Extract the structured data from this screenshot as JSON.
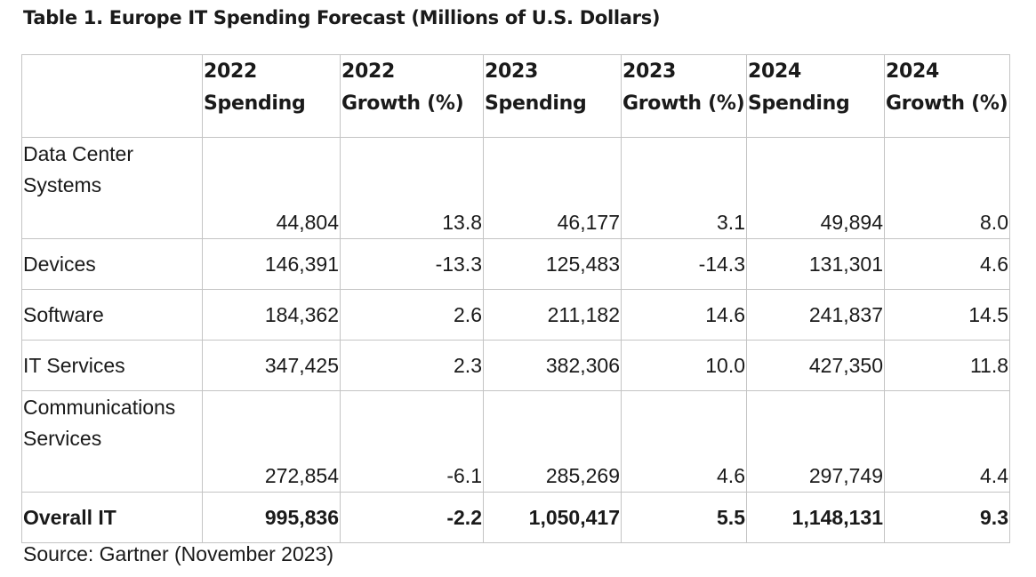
{
  "title": "Table 1. Europe IT Spending Forecast (Millions of U.S. Dollars)",
  "headers": [
    {
      "line1": "2022",
      "line2": "Spending"
    },
    {
      "line1": "2022",
      "line2": "Growth (%)"
    },
    {
      "line1": "2023",
      "line2": "Spending"
    },
    {
      "line1": "2023",
      "line2": "Growth (%)"
    },
    {
      "line1": "2024",
      "line2": "Spending"
    },
    {
      "line1": "2024",
      "line2": "Growth (%)"
    }
  ],
  "rows": [
    {
      "label1": "Data Center",
      "label2": "Systems",
      "values": [
        "44,804",
        "13.8",
        "46,177",
        "3.1",
        "49,894",
        "8.0"
      ]
    },
    {
      "label1": "Devices",
      "label2": "",
      "values": [
        "146,391",
        "-13.3",
        "125,483",
        "-14.3",
        "131,301",
        "4.6"
      ]
    },
    {
      "label1": "Software",
      "label2": "",
      "values": [
        "184,362",
        "2.6",
        "211,182",
        "14.6",
        "241,837",
        "14.5"
      ]
    },
    {
      "label1": "IT Services",
      "label2": "",
      "values": [
        "347,425",
        "2.3",
        "382,306",
        "10.0",
        "427,350",
        "11.8"
      ]
    },
    {
      "label1": "Communications",
      "label2": "Services",
      "values": [
        "272,854",
        "-6.1",
        "285,269",
        "4.6",
        "297,749",
        "4.4"
      ]
    },
    {
      "label1": "Overall IT",
      "label2": "",
      "values": [
        "995,836",
        "-2.2",
        "1,050,417",
        "5.5",
        "1,148,131",
        "9.3"
      ]
    }
  ],
  "source": "Source: Gartner (November 2023)"
}
